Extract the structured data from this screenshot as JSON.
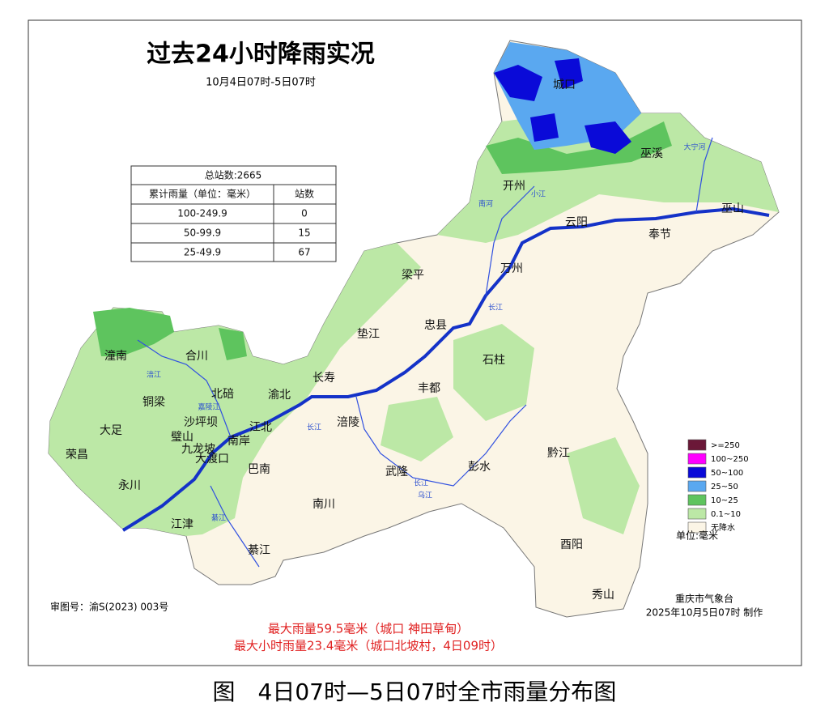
{
  "title": "过去24小时降雨实况",
  "subtitle": "10月4日07时-5日07时",
  "table": {
    "title": "总站数:2665",
    "header": [
      "累计雨量（单位：毫米）",
      "站数"
    ],
    "rows": [
      [
        "100-249.9",
        0
      ],
      [
        "50-99.9",
        15
      ],
      [
        "25-49.9",
        67
      ]
    ]
  },
  "legend": {
    "items": [
      {
        "label": ">=250",
        "color": "#6b1838"
      },
      {
        "label": "100~250",
        "color": "#ff00ff"
      },
      {
        "label": "50~100",
        "color": "#0a0ad8"
      },
      {
        "label": "25~50",
        "color": "#5aa8f0"
      },
      {
        "label": "10~25",
        "color": "#5ec45e"
      },
      {
        "label": "0.1~10",
        "color": "#bce8a6"
      },
      {
        "label": "无降水",
        "color": "#fbf5e6"
      }
    ],
    "unit": "单位:毫米"
  },
  "places": [
    "城口",
    "巫溪",
    "开州",
    "云阳",
    "奉节",
    "巫山",
    "万州",
    "梁平",
    "忠县",
    "垫江",
    "石柱",
    "长寿",
    "丰都",
    "潼南",
    "合川",
    "铜梁",
    "北碚",
    "渝北",
    "大足",
    "璧山",
    "荣昌",
    "永川",
    "巴南",
    "涪陵",
    "武隆",
    "彭水",
    "黔江",
    "南川",
    "江津",
    "綦江",
    "酉阳",
    "秀山",
    "沙坪坝",
    "九龙坡",
    "大渡口",
    "南岸",
    "江北"
  ],
  "rivers": [
    "长江",
    "长江",
    "长江",
    "嘉陵江",
    "涪江",
    "乌江",
    "大宁河",
    "南河",
    "小江",
    "綦江"
  ],
  "approval": "审图号：渝S(2023) 003号",
  "issuer": "重庆市气象台",
  "issued": "2025年10月5日07时 制作",
  "notes": [
    "最大雨量59.5毫米（城口 神田草甸）",
    "最大小时雨量23.4毫米（城口北坡村，4日09时）"
  ],
  "caption": "图　4日07时—5日07时全市雨量分布图"
}
